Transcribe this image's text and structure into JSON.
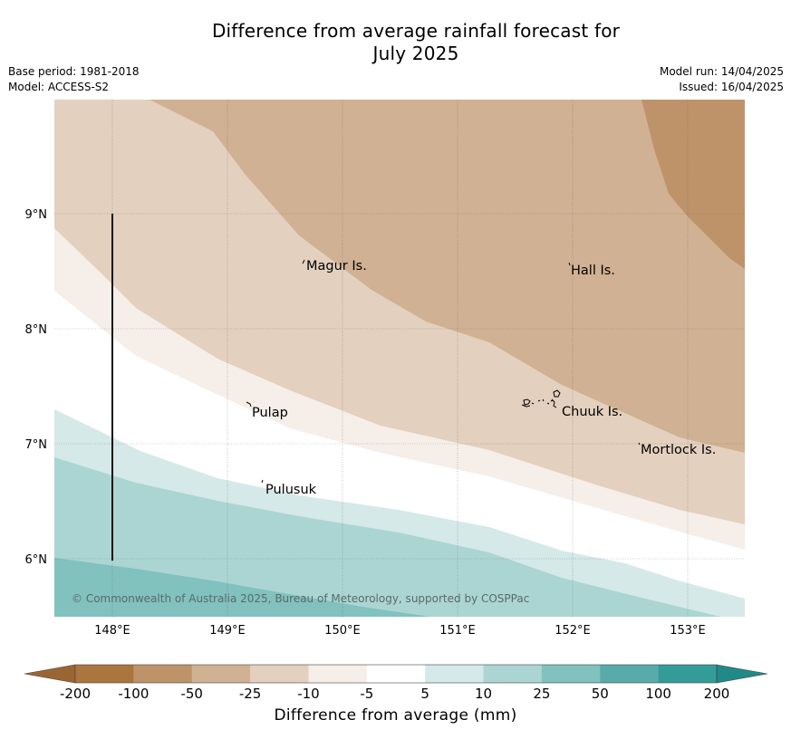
{
  "title_line1": "Difference from average rainfall forecast for",
  "title_line2": "July 2025",
  "meta_left": {
    "base_period": "Base period: 1981-2018",
    "model": "Model: ACCESS-S2"
  },
  "meta_right": {
    "model_run": "Model run: 14/04/2025",
    "issued": "Issued: 16/04/2025"
  },
  "map": {
    "lat_labels": [
      "9°N",
      "8°N",
      "7°N",
      "6°N"
    ],
    "lon_labels": [
      "148°E",
      "149°E",
      "150°E",
      "151°E",
      "152°E",
      "153°E"
    ],
    "places": [
      {
        "name": "Magur Is."
      },
      {
        "name": "Hall Is."
      },
      {
        "name": "Pulap"
      },
      {
        "name": "Chuuk Is."
      },
      {
        "name": "Mortlock Is."
      },
      {
        "name": "Pulusuk"
      }
    ],
    "attribution": "© Commonwealth of Australia 2025, Bureau of Meteorology, supported by COSPPac",
    "band_colors": {
      "-100": "#bf936a",
      "-50": "#d1b193",
      "-25": "#e3d0bf",
      "-10": "#f5eee9",
      "-5": "#ffffff",
      "5": "#d4e9e8",
      "10": "#abd5d3",
      "25": "#81c1be"
    }
  },
  "colorbar": {
    "colors": [
      "#ab753e",
      "#bf936a",
      "#d1b193",
      "#e3d0bf",
      "#f5eee9",
      "#ffffff",
      "#d4e9e8",
      "#abd5d3",
      "#81c1be",
      "#57acaa",
      "#339c98"
    ],
    "low_extend_color": "#9b6531",
    "high_extend_color": "#1f8a87",
    "tick_labels": [
      "-200",
      "-100",
      "-50",
      "-25",
      "-10",
      "-5",
      "5",
      "10",
      "25",
      "50",
      "100",
      "200"
    ],
    "label": "Difference from average (mm)"
  }
}
